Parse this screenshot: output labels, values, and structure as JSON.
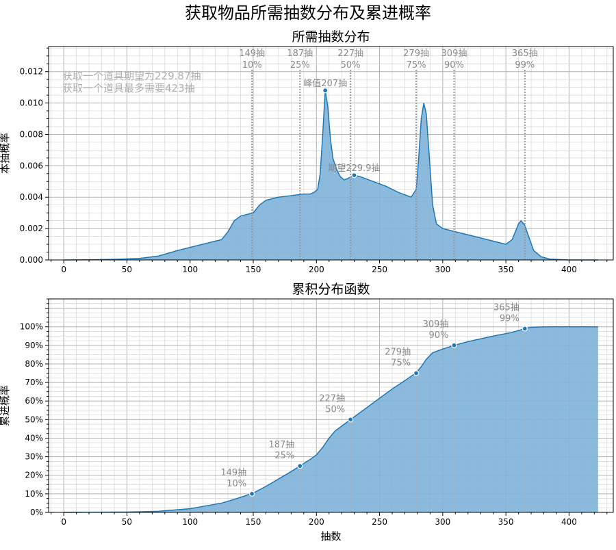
{
  "title": "获取物品所需抽数分布及累进概率",
  "colors": {
    "line": "#1f77b4",
    "fill": "#7eb3d8",
    "grid_major": "#b0b0b0",
    "grid_minor": "#d4d4d4",
    "annotation": "#8a8a8a",
    "info_text": "#b0b0b0"
  },
  "chart_data": [
    {
      "type": "area",
      "title": "所需抽数分布",
      "xlabel": "",
      "ylabel": "本抽概率",
      "xlim": [
        -12,
        435
      ],
      "ylim": [
        0,
        0.0136
      ],
      "xticks": [
        0,
        50,
        100,
        150,
        200,
        250,
        300,
        350,
        400
      ],
      "yticks": [
        0,
        0.002,
        0.004,
        0.006,
        0.008,
        0.01,
        0.012
      ],
      "ytick_labels": [
        "0.000",
        "0.002",
        "0.004",
        "0.006",
        "0.008",
        "0.010",
        "0.012"
      ],
      "grid": true,
      "info_lines": [
        "获取一个道具期望为229.87抽",
        "获取一个道具最多需要423抽"
      ],
      "series": [
        {
          "x": [
            0,
            20,
            40,
            60,
            75,
            90,
            100,
            110,
            120,
            125,
            130,
            135,
            140,
            145,
            150,
            155,
            160,
            165,
            170,
            180,
            190,
            195,
            198,
            201,
            203,
            205,
            207,
            209,
            211,
            213,
            215,
            217,
            219,
            222,
            225,
            229.9,
            235,
            245,
            255,
            265,
            275,
            279,
            281,
            283,
            285,
            287,
            289,
            292,
            295,
            300,
            310,
            320,
            330,
            340,
            345,
            350,
            355,
            360,
            362,
            365,
            368,
            372,
            378,
            385,
            400,
            423
          ],
          "values": [
            0,
            1e-05,
            4e-05,
            0.0001,
            0.00025,
            0.0006,
            0.0008,
            0.001,
            0.0012,
            0.0013,
            0.0018,
            0.0025,
            0.0028,
            0.0029,
            0.003,
            0.0035,
            0.0038,
            0.0039,
            0.004,
            0.0041,
            0.0042,
            0.0042,
            0.0043,
            0.0045,
            0.0055,
            0.008,
            0.0108,
            0.0098,
            0.0078,
            0.0065,
            0.006,
            0.0056,
            0.0053,
            0.0051,
            0.0052,
            0.0054,
            0.0053,
            0.005,
            0.0047,
            0.0043,
            0.004,
            0.0045,
            0.0065,
            0.009,
            0.01,
            0.0093,
            0.007,
            0.0035,
            0.0023,
            0.002,
            0.0018,
            0.0016,
            0.0014,
            0.0012,
            0.0011,
            0.001,
            0.0013,
            0.0023,
            0.0025,
            0.0022,
            0.0015,
            0.0006,
            0.0002,
            5e-05,
            0,
            0
          ]
        }
      ],
      "quantiles": [
        {
          "x": 149,
          "line1": "149抽",
          "line2": "10%"
        },
        {
          "x": 187,
          "line1": "187抽",
          "line2": "25%"
        },
        {
          "x": 227,
          "line1": "227抽",
          "line2": "50%"
        },
        {
          "x": 279,
          "line1": "279抽",
          "line2": "75%"
        },
        {
          "x": 309,
          "line1": "309抽",
          "line2": "90%"
        },
        {
          "x": 365,
          "line1": "365抽",
          "line2": "99%"
        }
      ],
      "points": [
        {
          "x": 207,
          "y": 0.0108,
          "label": "峰值207抽"
        },
        {
          "x": 229.9,
          "y": 0.0054,
          "label": "期望229.9抽"
        }
      ]
    },
    {
      "type": "area",
      "title": "累积分布函数",
      "xlabel": "抽数",
      "ylabel": "累进概率",
      "xlim": [
        -12,
        435
      ],
      "ylim": [
        0,
        1.15
      ],
      "xticks": [
        0,
        50,
        100,
        150,
        200,
        250,
        300,
        350,
        400
      ],
      "yticks": [
        0,
        0.1,
        0.2,
        0.3,
        0.4,
        0.5,
        0.6,
        0.7,
        0.8,
        0.9,
        1.0
      ],
      "ytick_labels": [
        "0%",
        "10%",
        "20%",
        "30%",
        "40%",
        "50%",
        "60%",
        "70%",
        "80%",
        "90%",
        "100%"
      ],
      "grid": true,
      "series": [
        {
          "x": [
            0,
            50,
            75,
            100,
            125,
            135,
            150,
            160,
            170,
            180,
            187,
            195,
            200,
            205,
            210,
            215,
            220,
            227,
            240,
            250,
            260,
            270,
            279,
            283,
            287,
            292,
            300,
            309,
            320,
            340,
            355,
            360,
            365,
            370,
            380,
            423
          ],
          "values": [
            0,
            0.002,
            0.006,
            0.02,
            0.05,
            0.07,
            0.104,
            0.14,
            0.18,
            0.22,
            0.25,
            0.285,
            0.31,
            0.35,
            0.4,
            0.44,
            0.465,
            0.5,
            0.565,
            0.615,
            0.665,
            0.71,
            0.752,
            0.785,
            0.825,
            0.86,
            0.88,
            0.9,
            0.92,
            0.95,
            0.97,
            0.98,
            0.99,
            0.997,
            1.0,
            1.0
          ]
        }
      ],
      "quantiles": [
        {
          "x": 149,
          "y": 0.1,
          "line1": "149抽",
          "line2": "10%"
        },
        {
          "x": 187,
          "y": 0.25,
          "line1": "187抽",
          "line2": "25%"
        },
        {
          "x": 227,
          "y": 0.5,
          "line1": "227抽",
          "line2": "50%"
        },
        {
          "x": 279,
          "y": 0.75,
          "line1": "279抽",
          "line2": "75%"
        },
        {
          "x": 309,
          "y": 0.9,
          "line1": "309抽",
          "line2": "90%"
        },
        {
          "x": 365,
          "y": 0.99,
          "line1": "365抽",
          "line2": "99%"
        }
      ]
    }
  ]
}
